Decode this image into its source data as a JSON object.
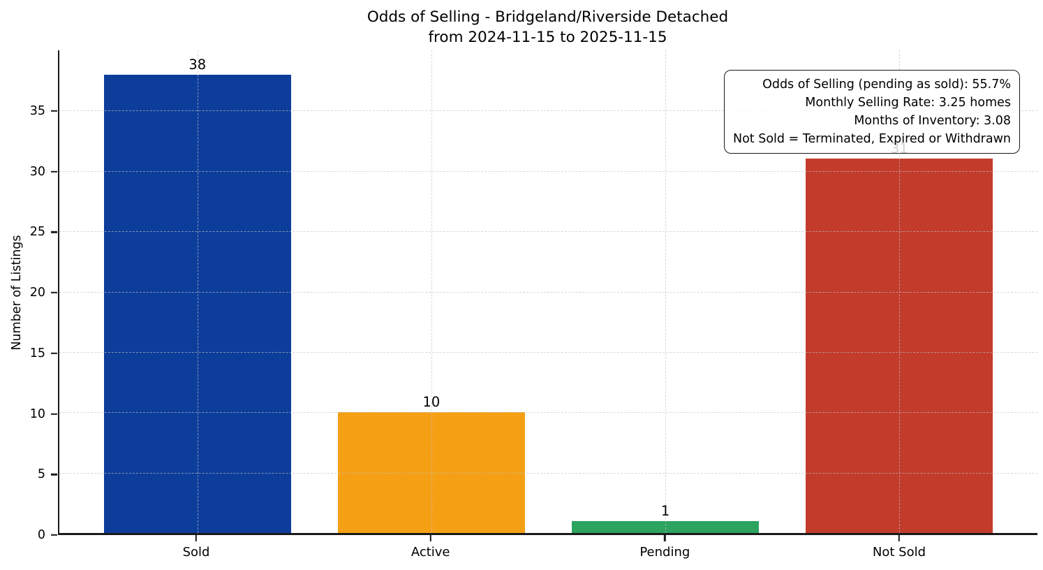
{
  "title": {
    "line1": "Odds of Selling - Bridgeland/Riverside Detached",
    "line2": "from 2024-11-15 to 2025-11-15"
  },
  "annotation": {
    "lines": [
      "Odds of Selling (pending as sold): 55.7%",
      "Monthly Selling Rate: 3.25 homes",
      "Months of Inventory: 3.08",
      "Not Sold = Terminated, Expired or Withdrawn"
    ]
  },
  "chart_data": {
    "type": "bar",
    "title": "Odds of Selling - Bridgeland/Riverside Detached\nfrom 2024-11-15 to 2025-11-15",
    "categories": [
      "Sold",
      "Active",
      "Pending",
      "Not Sold"
    ],
    "values": [
      38,
      10,
      1,
      31
    ],
    "bar_colors": [
      "#0d3d9b",
      "#f5a014",
      "#2ca35f",
      "#c23b2b"
    ],
    "xlabel": "",
    "ylabel": "Number of Listings",
    "ylim": [
      0,
      40
    ],
    "yticks": [
      0,
      5,
      10,
      15,
      20,
      25,
      30,
      35
    ],
    "grid": true,
    "grid_style": "dashed",
    "legend_position": "none",
    "annotation_lines": [
      "Odds of Selling (pending as sold): 55.7%",
      "Monthly Selling Rate: 3.25 homes",
      "Months of Inventory: 3.08",
      "Not Sold = Terminated, Expired or Withdrawn"
    ]
  }
}
